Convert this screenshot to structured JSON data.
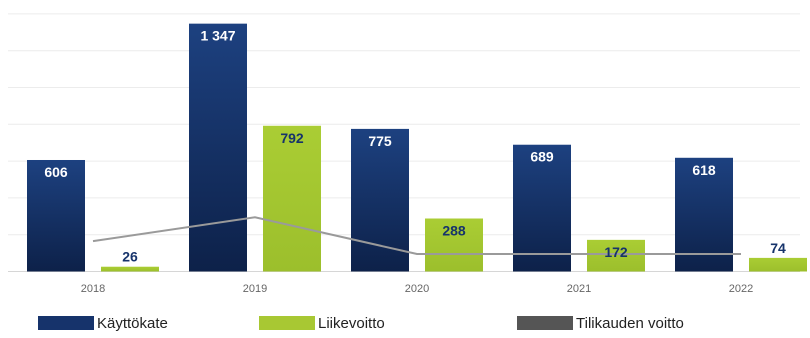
{
  "chart_data": {
    "type": "bar",
    "title": "",
    "xlabel": "",
    "ylabel": "",
    "ylim": [
      0,
      1500
    ],
    "grid": true,
    "legend_position": "bottom",
    "categories": [
      "2018",
      "2019",
      "2020",
      "2021",
      "2022"
    ],
    "series": [
      {
        "name": "Käyttökate",
        "type": "bar",
        "color": "#16336b",
        "values": [
          606,
          1347,
          775,
          689,
          618
        ],
        "labels": [
          "606",
          "1 347",
          "775",
          "689",
          "618"
        ]
      },
      {
        "name": "Liikevoitto",
        "type": "bar",
        "color": "#a8c833",
        "values": [
          26,
          792,
          288,
          172,
          74
        ],
        "labels": [
          "26",
          "792",
          "288",
          "172",
          "74"
        ]
      },
      {
        "name": "Tilikauden voitto",
        "type": "line",
        "color": "#9a9a9a",
        "values": [
          165,
          295,
          95,
          95,
          95
        ]
      }
    ]
  },
  "legend": {
    "items": [
      {
        "label": "Käyttökate",
        "color": "#16336b"
      },
      {
        "label": "Liikevoitto",
        "color": "#a8c833"
      },
      {
        "label": "Tilikauden voitto",
        "color": "#555555"
      }
    ]
  }
}
